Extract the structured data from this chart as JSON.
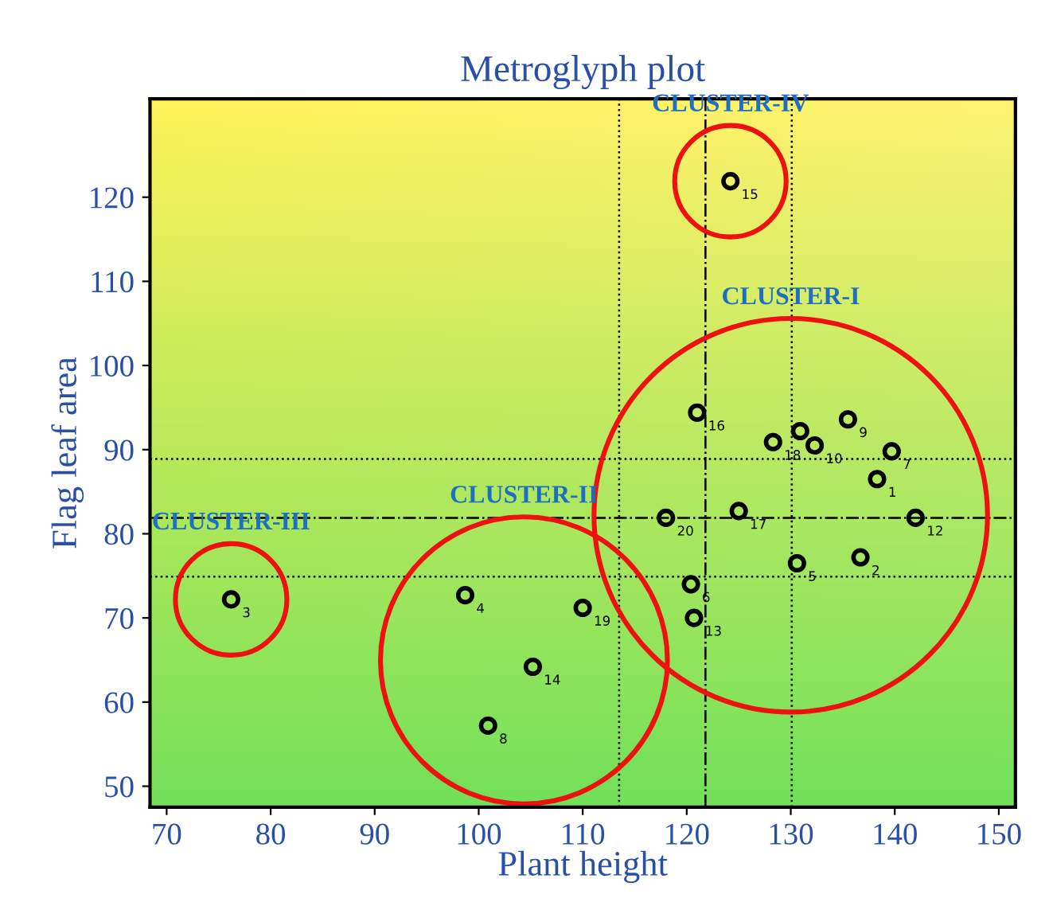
{
  "chart_data": {
    "type": "scatter",
    "title": "Metroglyph plot",
    "xlabel": "Plant height",
    "ylabel": "Flag leaf area",
    "xlim": [
      68.4,
      151.6
    ],
    "ylim": [
      47.5,
      131.7
    ],
    "xticks": [
      70,
      80,
      90,
      100,
      110,
      120,
      130,
      140,
      150
    ],
    "yticks": [
      50,
      60,
      70,
      80,
      90,
      100,
      110,
      120
    ],
    "marker": "circle",
    "grid": false,
    "series": [
      {
        "color": "#000000",
        "x": [
          138.3,
          136.7,
          130.6,
          120.4,
          139.7,
          135.5,
          132.3,
          130.9,
          142.0,
          120.7,
          121.0,
          125.0,
          128.3,
          118.0
        ],
        "values": [
          86.5,
          77.2,
          76.5,
          74.0,
          89.8,
          93.6,
          90.5,
          92.2,
          81.9,
          70.0,
          94.4,
          82.7,
          90.9,
          81.9
        ]
      },
      {
        "color": "#000000",
        "x": [
          98.7,
          100.9,
          105.2,
          110.0
        ],
        "values": [
          72.7,
          57.2,
          64.2,
          71.2
        ]
      },
      {
        "color": "#000000",
        "x": [
          76.2
        ],
        "values": [
          72.2
        ]
      },
      {
        "color": "#000000",
        "x": [
          124.2
        ],
        "values": [
          121.9
        ]
      }
    ],
    "annotations": [
      {
        "text": "1",
        "x": 138.3,
        "y": 86.5
      },
      {
        "text": "2",
        "x": 136.7,
        "y": 77.2
      },
      {
        "text": "3",
        "x": 76.2,
        "y": 72.2
      },
      {
        "text": "4",
        "x": 98.7,
        "y": 72.7
      },
      {
        "text": "5",
        "x": 130.6,
        "y": 76.5
      },
      {
        "text": "6",
        "x": 120.4,
        "y": 74.0
      },
      {
        "text": "7",
        "x": 139.7,
        "y": 89.8
      },
      {
        "text": "8",
        "x": 100.9,
        "y": 57.2
      },
      {
        "text": "9",
        "x": 135.5,
        "y": 93.6
      },
      {
        "text": "10",
        "x": 132.3,
        "y": 90.5
      },
      {
        "text": "12",
        "x": 142.0,
        "y": 81.9
      },
      {
        "text": "13",
        "x": 120.7,
        "y": 70.0
      },
      {
        "text": "14",
        "x": 105.2,
        "y": 64.2
      },
      {
        "text": "15",
        "x": 124.2,
        "y": 121.9
      },
      {
        "text": "16",
        "x": 121.0,
        "y": 94.4
      },
      {
        "text": "17",
        "x": 125.0,
        "y": 82.7
      },
      {
        "text": "18",
        "x": 128.3,
        "y": 90.9
      },
      {
        "text": "19",
        "x": 110.0,
        "y": 71.2
      },
      {
        "text": "20",
        "x": 118.0,
        "y": 81.9
      },
      "CLUSTER-I",
      "CLUSTER-II",
      "CLUSTER-III",
      "CLUSTER-IV"
    ],
    "ref_lines": [
      {
        "axis": "x",
        "value": 113.5,
        "line_style": "dotted"
      },
      {
        "axis": "x",
        "value": 121.8,
        "line_style": "dashdot"
      },
      {
        "axis": "x",
        "value": 130.1,
        "line_style": "dotted"
      },
      {
        "axis": "y",
        "value": 88.9,
        "line_style": "dotted"
      },
      {
        "axis": "y",
        "value": 81.9,
        "line_style": "dashdot"
      },
      {
        "axis": "y",
        "value": 74.9,
        "line_style": "dotted"
      }
    ]
  }
}
